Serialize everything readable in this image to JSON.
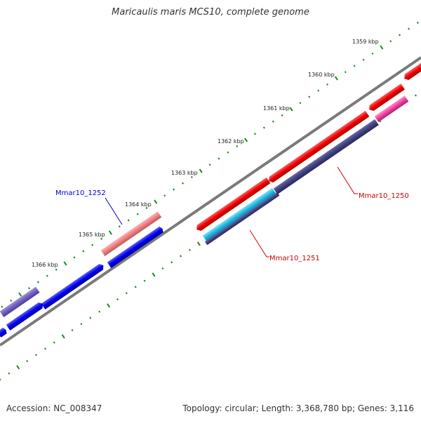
{
  "title": "Maricaulis maris MCS10, complete genome",
  "footer": {
    "accession": "Accession: NC_008347",
    "summary": "Topology: circular; Length: 3,368,780 bp; Genes: 3,116"
  },
  "colors": {
    "backbone": "#7a7a7a",
    "tick": "#1a8a1a",
    "gene_blue": "#1010ee",
    "gene_red": "#ee1010",
    "gene_pink": "#ee8080",
    "gene_lavender": "#7060c0",
    "gene_navy": "#404080",
    "gene_cyan": "#20b8e0",
    "gene_magenta": "#f040a0",
    "label_blue": "#0000cc",
    "label_red": "#cc0000"
  },
  "ticks": [
    {
      "label": "1359 kbp"
    },
    {
      "label": "1360 kbp"
    },
    {
      "label": "1361 kbp"
    },
    {
      "label": "1362 kbp"
    },
    {
      "label": "1363 kbp"
    },
    {
      "label": "1364 kbp"
    },
    {
      "label": "1365 kbp"
    },
    {
      "label": "1366 kbp"
    }
  ],
  "gene_labels": [
    {
      "name": "Mmar10_1252",
      "color": "blue"
    },
    {
      "name": "Mmar10_1250",
      "color": "red"
    },
    {
      "name": "Mmar10_1251",
      "color": "red"
    }
  ]
}
